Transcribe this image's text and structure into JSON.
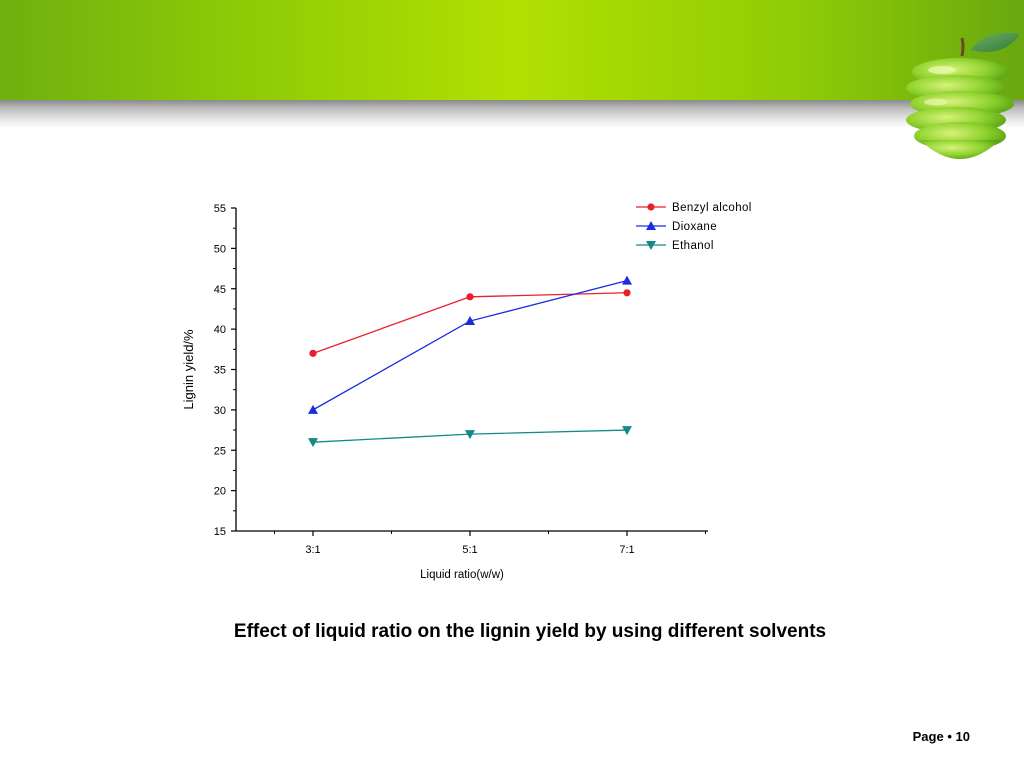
{
  "slide": {
    "caption": "Effect of liquid ratio on the lignin yield by using different solvents",
    "page_label": "Page",
    "page_separator": "•",
    "page_number": "10"
  },
  "theme": {
    "banner_green": "#8fcc06",
    "apple_green": "#8fd22e"
  },
  "chart_data": {
    "type": "line",
    "title": "",
    "xlabel": "Liquid ratio(w/w)",
    "ylabel": "Lignin yield/%",
    "categories": [
      "3:1",
      "5:1",
      "7:1"
    ],
    "ylim": [
      15,
      55
    ],
    "yticks": [
      15,
      20,
      25,
      30,
      35,
      40,
      45,
      50,
      55
    ],
    "grid": false,
    "legend_position": "top-right",
    "series": [
      {
        "name": "Benzyl alcohol",
        "values": [
          37,
          44,
          44.5
        ],
        "color": "#e8202a",
        "marker": "circle"
      },
      {
        "name": "Dioxane",
        "values": [
          30,
          41,
          46
        ],
        "color": "#1a2ee0",
        "marker": "triangle-up"
      },
      {
        "name": "Ethanol",
        "values": [
          26,
          27,
          27.5
        ],
        "color": "#138a8a",
        "marker": "triangle-down"
      }
    ]
  }
}
